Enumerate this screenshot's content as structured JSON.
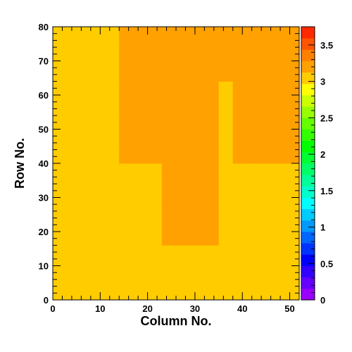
{
  "chart_data": {
    "type": "heatmap",
    "xlabel": "Column No.",
    "ylabel": "Row No.",
    "xlim": [
      0,
      52
    ],
    "ylim": [
      0,
      80
    ],
    "x_ticks": [
      0,
      10,
      20,
      30,
      40,
      50
    ],
    "y_ticks": [
      0,
      10,
      20,
      30,
      40,
      50,
      60,
      70,
      80
    ],
    "zlim": [
      0,
      3.75
    ],
    "z_ticks": [
      "0",
      "0.5",
      "1",
      "1.5",
      "2",
      "2.5",
      "3",
      "3.5"
    ],
    "n_columns": 52,
    "n_rows": 80,
    "bin_size_y": 2,
    "row_bands": [
      {
        "rows": [
          0,
          8
        ],
        "cells": "3 3 3 3 3 3 3 3 3 3 3 3 3 3 3 3 3 3 3 3 3 3 3 3 3 3 3 3 3 3 3 3 3 3 3 3 3 3 3 3 3 3 3 3 3 3 3 3 3 3 3 3"
      },
      {
        "rows": [
          8,
          16
        ],
        "cells": "3 3 3 3 3 3 3 3 3 3 3 3 3 3 3 3 3 3 3 3 3 3 3 3 3 3 3 3 3 3 3 3 3 3 3 3 3 3 3 3 3 3 3 3 3 3 3 3 3 3 3 3"
      },
      {
        "rows": [
          16,
          40
        ],
        "cells": "3 3 3 3 3 3 3 3 3 3 3 3 3 3 3 3 3 3 3 3 3 3 3 3.25 3.25 3.25 3.25 3.25 3.25 3.25 3.25 3.25 3.25 3.25 3.25 3 3 3 3 3 3 3 3 3 3 3 3 3 3 3 3 3"
      },
      {
        "rows": [
          40,
          64
        ],
        "cells": "3 3 3 3 3 3 3 3 3 3 3 3 3 3 3.25 3.25 3.25 3.25 3.25 3.25 3.25 3.25 3.25 3.25 3.25 3.25 3.25 3.25 3.25 3.25 3.25 3.25 3.25 3.25 3.25 3 3 3 3.25 3.25 3.25 3.25 3.25 3.25 3.25 3.25 3.25 3.25 3.25 3.25 3.25 3.25"
      },
      {
        "rows": [
          64,
          80
        ],
        "cells": "3 3 3 3 3 3 3 3 3 3 3 3 3 3 3.25 3.25 3.25 3.25 3.25 3.25 3.25 3.25 3.25 3.25 3.25 3.25 3.25 3.25 3.25 3.25 3.25 3.25 3.25 3.25 3.25 3.25 3.25 3.25 3.25 3.25 3.25 3.25 3.25 3.25 3.25 3.25 3.25 3.25 3.25 3.25 3.25 3.25"
      }
    ],
    "palette": [
      "#9900ff",
      "#6600ff",
      "#3300ff",
      "#0000ff",
      "#0033ff",
      "#0066ff",
      "#0099ff",
      "#00ccff",
      "#00ffff",
      "#00ffcc",
      "#00ff99",
      "#00ff66",
      "#00ff33",
      "#00ff00",
      "#33ff00",
      "#66ff00",
      "#99ff00",
      "#ccff00",
      "#ffff00",
      "#ffcc00",
      "#ffa100",
      "#ff8000",
      "#ff5500",
      "#ff2a00"
    ],
    "colors": {
      "frame": "#000000",
      "background": "#ffffff"
    }
  }
}
